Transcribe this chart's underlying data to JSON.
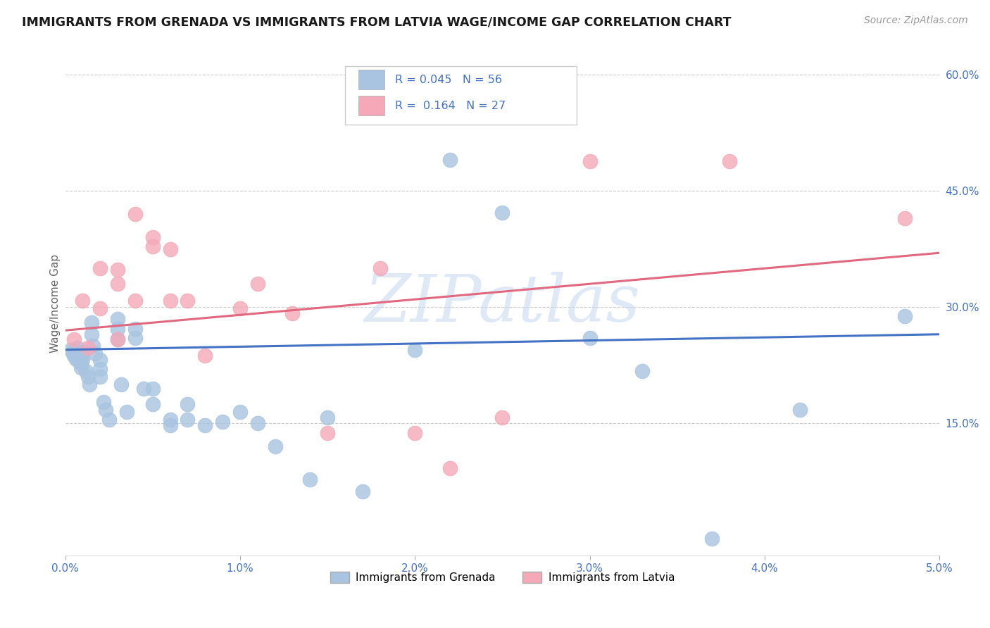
{
  "title": "IMMIGRANTS FROM GRENADA VS IMMIGRANTS FROM LATVIA WAGE/INCOME GAP CORRELATION CHART",
  "source": "Source: ZipAtlas.com",
  "ylabel": "Wage/Income Gap",
  "legend_label1": "Immigrants from Grenada",
  "legend_label2": "Immigrants from Latvia",
  "r1": 0.045,
  "n1": 56,
  "r2": 0.164,
  "n2": 27,
  "color1": "#a8c4e0",
  "color2": "#f4a8b8",
  "line_color1": "#4472c4",
  "line_color2": "#e06880",
  "text_color": "#4472c4",
  "watermark": "ZIPatlas",
  "xlim": [
    0.0,
    0.05
  ],
  "ylim": [
    -0.02,
    0.63
  ],
  "yticks": [
    0.15,
    0.3,
    0.45,
    0.6
  ],
  "ytick_labels": [
    "15.0%",
    "30.0%",
    "45.0%",
    "60.0%"
  ],
  "xticks": [
    0.0,
    0.01,
    0.02,
    0.03,
    0.04,
    0.05
  ],
  "xtick_labels": [
    "0.0%",
    "1.0%",
    "2.0%",
    "3.0%",
    "4.0%",
    "5.0%"
  ],
  "grenada_x": [
    0.0003,
    0.0004,
    0.0005,
    0.0006,
    0.0007,
    0.0007,
    0.0008,
    0.0008,
    0.0009,
    0.0009,
    0.001,
    0.001,
    0.001,
    0.0012,
    0.0013,
    0.0014,
    0.0015,
    0.0015,
    0.0016,
    0.0017,
    0.002,
    0.002,
    0.002,
    0.0022,
    0.0023,
    0.0025,
    0.003,
    0.003,
    0.003,
    0.0032,
    0.0035,
    0.004,
    0.004,
    0.0045,
    0.005,
    0.005,
    0.006,
    0.006,
    0.007,
    0.007,
    0.008,
    0.009,
    0.01,
    0.011,
    0.012,
    0.014,
    0.015,
    0.017,
    0.02,
    0.022,
    0.025,
    0.03,
    0.033,
    0.037,
    0.042,
    0.048
  ],
  "grenada_y": [
    0.245,
    0.242,
    0.238,
    0.233,
    0.248,
    0.242,
    0.24,
    0.23,
    0.228,
    0.222,
    0.242,
    0.238,
    0.232,
    0.218,
    0.21,
    0.2,
    0.28,
    0.265,
    0.25,
    0.24,
    0.232,
    0.22,
    0.21,
    0.178,
    0.168,
    0.155,
    0.285,
    0.272,
    0.258,
    0.2,
    0.165,
    0.272,
    0.26,
    0.195,
    0.195,
    0.175,
    0.155,
    0.148,
    0.175,
    0.155,
    0.148,
    0.152,
    0.165,
    0.15,
    0.12,
    0.078,
    0.158,
    0.062,
    0.245,
    0.49,
    0.422,
    0.26,
    0.218,
    0.001,
    0.168,
    0.288
  ],
  "latvia_x": [
    0.0005,
    0.001,
    0.0013,
    0.002,
    0.002,
    0.003,
    0.003,
    0.003,
    0.004,
    0.004,
    0.005,
    0.005,
    0.006,
    0.006,
    0.007,
    0.008,
    0.01,
    0.011,
    0.013,
    0.015,
    0.018,
    0.02,
    0.022,
    0.025,
    0.03,
    0.038,
    0.048
  ],
  "latvia_y": [
    0.258,
    0.308,
    0.248,
    0.35,
    0.298,
    0.348,
    0.33,
    0.258,
    0.42,
    0.308,
    0.39,
    0.378,
    0.375,
    0.308,
    0.308,
    0.238,
    0.298,
    0.33,
    0.292,
    0.138,
    0.35,
    0.138,
    0.092,
    0.158,
    0.488,
    0.488,
    0.415
  ],
  "trendline1_x0": 0.0,
  "trendline1_y0": 0.245,
  "trendline1_x1": 0.05,
  "trendline1_y1": 0.265,
  "trendline2_x0": 0.0,
  "trendline2_y0": 0.27,
  "trendline2_x1": 0.05,
  "trendline2_y1": 0.37
}
